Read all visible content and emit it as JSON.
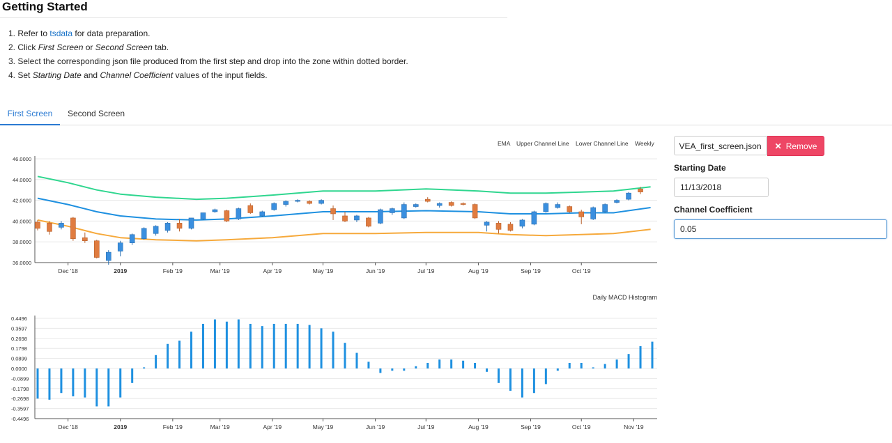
{
  "page": {
    "title": "Getting Started",
    "steps": {
      "s1_num": "1. ",
      "s1_pre": "Refer to ",
      "s1_link": "tsdata",
      "s1_post": " for data preparation.",
      "s2_num": "2. ",
      "s2_pre": "Click ",
      "s2_em1": "First Screen",
      "s2_mid": " or ",
      "s2_em2": "Second Screen",
      "s2_post": " tab.",
      "s3": "3. Select the corresponding json file produced from the first step and drop into the zone within dotted border.",
      "s4_num": "4. ",
      "s4_pre": "Set ",
      "s4_em1": "Starting Date",
      "s4_mid": " and ",
      "s4_em2": "Channel Coefficient",
      "s4_post": " values of the input fields."
    }
  },
  "tabs": {
    "first": "First Screen",
    "second": "Second Screen",
    "active": "first"
  },
  "form": {
    "file_name": "VEA_first_screen.json",
    "remove_label": "Remove",
    "remove_icon": "close-icon",
    "starting_date_label": "Starting Date",
    "starting_date_value": "11/13/2018",
    "channel_coef_label": "Channel Coefficient",
    "channel_coef_value": "0.05"
  },
  "colors": {
    "ema": "#1e90e0",
    "upper": "#2fd68f",
    "lower": "#f6a93b",
    "up_candle": "#3a8fdf",
    "down_candle": "#e07c40",
    "macd": "#1e90e0",
    "remove_button": "#ee4665",
    "active_tab": "#2a7ad2"
  },
  "chart_data": [
    {
      "type": "candlestick",
      "legend": [
        "EMA",
        "Upper Channel Line",
        "Lower Channel Line",
        "Weekly"
      ],
      "legend_position": "top-right",
      "ylim": [
        36.0,
        46.0
      ],
      "yticks": [
        "46.0000",
        "44.0000",
        "42.0000",
        "40.0000",
        "38.0000",
        "36.0000"
      ],
      "xticks": [
        {
          "label": "Dec '18",
          "date": "2018-12-01"
        },
        {
          "label": "2019",
          "date": "2019-01-01",
          "bold": true
        },
        {
          "label": "Feb '19",
          "date": "2019-02-01"
        },
        {
          "label": "Mar '19",
          "date": "2019-03-01"
        },
        {
          "label": "Apr '19",
          "date": "2019-04-01"
        },
        {
          "label": "May '19",
          "date": "2019-05-01"
        },
        {
          "label": "Jun '19",
          "date": "2019-06-01"
        },
        {
          "label": "Jul '19",
          "date": "2019-07-01"
        },
        {
          "label": "Aug '19",
          "date": "2019-08-01"
        },
        {
          "label": "Sep '19",
          "date": "2019-09-01"
        },
        {
          "label": "Oct '19",
          "date": "2019-10-01"
        }
      ],
      "candles": [
        {
          "date": "2018-11-13",
          "o": 39.9,
          "h": 40.1,
          "l": 39.1,
          "c": 39.3
        },
        {
          "date": "2018-11-20",
          "o": 39.8,
          "h": 40.0,
          "l": 38.7,
          "c": 39.0
        },
        {
          "date": "2018-11-27",
          "o": 39.4,
          "h": 40.0,
          "l": 39.2,
          "c": 39.8
        },
        {
          "date": "2018-12-04",
          "o": 40.3,
          "h": 40.4,
          "l": 38.1,
          "c": 38.3
        },
        {
          "date": "2018-12-11",
          "o": 38.4,
          "h": 38.9,
          "l": 37.9,
          "c": 38.1
        },
        {
          "date": "2018-12-18",
          "o": 38.1,
          "h": 38.2,
          "l": 36.4,
          "c": 36.5
        },
        {
          "date": "2018-12-25",
          "o": 36.2,
          "h": 37.2,
          "l": 35.8,
          "c": 37.0
        },
        {
          "date": "2019-01-01",
          "o": 37.1,
          "h": 38.1,
          "l": 36.6,
          "c": 37.9
        },
        {
          "date": "2019-01-08",
          "o": 37.9,
          "h": 38.8,
          "l": 37.7,
          "c": 38.7
        },
        {
          "date": "2019-01-15",
          "o": 38.3,
          "h": 39.4,
          "l": 38.2,
          "c": 39.3
        },
        {
          "date": "2019-01-22",
          "o": 38.8,
          "h": 39.6,
          "l": 38.6,
          "c": 39.5
        },
        {
          "date": "2019-01-29",
          "o": 39.1,
          "h": 39.9,
          "l": 38.9,
          "c": 39.8
        },
        {
          "date": "2019-02-05",
          "o": 39.8,
          "h": 40.2,
          "l": 39.0,
          "c": 39.3
        },
        {
          "date": "2019-02-12",
          "o": 39.3,
          "h": 40.3,
          "l": 39.2,
          "c": 40.3
        },
        {
          "date": "2019-02-19",
          "o": 40.2,
          "h": 40.8,
          "l": 40.1,
          "c": 40.8
        },
        {
          "date": "2019-02-26",
          "o": 40.9,
          "h": 41.2,
          "l": 40.8,
          "c": 41.1
        },
        {
          "date": "2019-03-05",
          "o": 41.0,
          "h": 41.1,
          "l": 39.9,
          "c": 40.0
        },
        {
          "date": "2019-03-12",
          "o": 40.2,
          "h": 41.3,
          "l": 40.1,
          "c": 41.2
        },
        {
          "date": "2019-03-19",
          "o": 41.5,
          "h": 41.7,
          "l": 40.7,
          "c": 40.8
        },
        {
          "date": "2019-03-26",
          "o": 40.5,
          "h": 41.0,
          "l": 40.4,
          "c": 40.9
        },
        {
          "date": "2019-04-02",
          "o": 41.1,
          "h": 41.8,
          "l": 41.0,
          "c": 41.7
        },
        {
          "date": "2019-04-09",
          "o": 41.6,
          "h": 42.0,
          "l": 41.4,
          "c": 41.9
        },
        {
          "date": "2019-04-16",
          "o": 41.9,
          "h": 42.1,
          "l": 41.8,
          "c": 42.0
        },
        {
          "date": "2019-04-23",
          "o": 41.9,
          "h": 42.0,
          "l": 41.6,
          "c": 41.7
        },
        {
          "date": "2019-04-30",
          "o": 41.7,
          "h": 42.1,
          "l": 41.6,
          "c": 42.0
        },
        {
          "date": "2019-05-07",
          "o": 41.2,
          "h": 41.5,
          "l": 40.1,
          "c": 40.7
        },
        {
          "date": "2019-05-14",
          "o": 40.5,
          "h": 40.9,
          "l": 39.9,
          "c": 40.0
        },
        {
          "date": "2019-05-21",
          "o": 40.1,
          "h": 40.6,
          "l": 39.9,
          "c": 40.5
        },
        {
          "date": "2019-05-28",
          "o": 40.3,
          "h": 40.4,
          "l": 39.4,
          "c": 39.5
        },
        {
          "date": "2019-06-04",
          "o": 39.8,
          "h": 41.2,
          "l": 39.7,
          "c": 41.1
        },
        {
          "date": "2019-06-11",
          "o": 40.8,
          "h": 41.3,
          "l": 40.6,
          "c": 41.2
        },
        {
          "date": "2019-06-18",
          "o": 40.3,
          "h": 41.8,
          "l": 40.2,
          "c": 41.6
        },
        {
          "date": "2019-06-25",
          "o": 41.4,
          "h": 41.7,
          "l": 41.3,
          "c": 41.6
        },
        {
          "date": "2019-07-02",
          "o": 42.1,
          "h": 42.3,
          "l": 41.8,
          "c": 41.9
        },
        {
          "date": "2019-07-09",
          "o": 41.5,
          "h": 41.8,
          "l": 41.3,
          "c": 41.7
        },
        {
          "date": "2019-07-16",
          "o": 41.8,
          "h": 41.9,
          "l": 41.4,
          "c": 41.5
        },
        {
          "date": "2019-07-23",
          "o": 41.7,
          "h": 41.8,
          "l": 41.5,
          "c": 41.6
        },
        {
          "date": "2019-07-30",
          "o": 41.6,
          "h": 41.7,
          "l": 40.2,
          "c": 40.3
        },
        {
          "date": "2019-08-06",
          "o": 39.6,
          "h": 40.0,
          "l": 39.0,
          "c": 39.9
        },
        {
          "date": "2019-08-13",
          "o": 39.8,
          "h": 40.0,
          "l": 38.8,
          "c": 39.2
        },
        {
          "date": "2019-08-20",
          "o": 39.7,
          "h": 39.9,
          "l": 39.0,
          "c": 39.1
        },
        {
          "date": "2019-08-27",
          "o": 39.5,
          "h": 40.2,
          "l": 39.3,
          "c": 40.1
        },
        {
          "date": "2019-09-03",
          "o": 39.7,
          "h": 41.0,
          "l": 39.6,
          "c": 40.9
        },
        {
          "date": "2019-09-10",
          "o": 40.9,
          "h": 41.8,
          "l": 40.8,
          "c": 41.7
        },
        {
          "date": "2019-09-17",
          "o": 41.3,
          "h": 41.8,
          "l": 41.2,
          "c": 41.6
        },
        {
          "date": "2019-09-24",
          "o": 41.4,
          "h": 41.5,
          "l": 40.8,
          "c": 40.9
        },
        {
          "date": "2019-10-01",
          "o": 40.9,
          "h": 41.1,
          "l": 39.7,
          "c": 40.4
        },
        {
          "date": "2019-10-08",
          "o": 40.2,
          "h": 41.4,
          "l": 40.1,
          "c": 41.3
        },
        {
          "date": "2019-10-15",
          "o": 40.9,
          "h": 41.7,
          "l": 40.8,
          "c": 41.6
        },
        {
          "date": "2019-10-22",
          "o": 41.8,
          "h": 42.1,
          "l": 41.7,
          "c": 42.0
        },
        {
          "date": "2019-10-29",
          "o": 42.1,
          "h": 42.8,
          "l": 42.0,
          "c": 42.7
        },
        {
          "date": "2019-11-05",
          "o": 43.1,
          "h": 43.3,
          "l": 42.6,
          "c": 42.8
        }
      ],
      "lines": {
        "ema": [
          {
            "date": "2018-11-13",
            "v": 42.2
          },
          {
            "date": "2018-12-01",
            "v": 41.6
          },
          {
            "date": "2018-12-18",
            "v": 40.9
          },
          {
            "date": "2019-01-01",
            "v": 40.5
          },
          {
            "date": "2019-01-22",
            "v": 40.2
          },
          {
            "date": "2019-02-15",
            "v": 40.1
          },
          {
            "date": "2019-03-05",
            "v": 40.2
          },
          {
            "date": "2019-04-01",
            "v": 40.5
          },
          {
            "date": "2019-05-01",
            "v": 40.9
          },
          {
            "date": "2019-06-01",
            "v": 40.9
          },
          {
            "date": "2019-07-01",
            "v": 41.0
          },
          {
            "date": "2019-08-01",
            "v": 40.9
          },
          {
            "date": "2019-08-20",
            "v": 40.7
          },
          {
            "date": "2019-09-10",
            "v": 40.7
          },
          {
            "date": "2019-10-01",
            "v": 40.8
          },
          {
            "date": "2019-10-20",
            "v": 40.8
          },
          {
            "date": "2019-11-11",
            "v": 41.3
          }
        ],
        "upper": [
          {
            "date": "2018-11-13",
            "v": 44.3
          },
          {
            "date": "2018-12-01",
            "v": 43.7
          },
          {
            "date": "2018-12-18",
            "v": 43.0
          },
          {
            "date": "2019-01-01",
            "v": 42.6
          },
          {
            "date": "2019-01-22",
            "v": 42.3
          },
          {
            "date": "2019-02-15",
            "v": 42.1
          },
          {
            "date": "2019-03-05",
            "v": 42.2
          },
          {
            "date": "2019-04-01",
            "v": 42.5
          },
          {
            "date": "2019-05-01",
            "v": 42.9
          },
          {
            "date": "2019-06-01",
            "v": 42.9
          },
          {
            "date": "2019-07-01",
            "v": 43.1
          },
          {
            "date": "2019-08-01",
            "v": 42.9
          },
          {
            "date": "2019-08-20",
            "v": 42.7
          },
          {
            "date": "2019-09-10",
            "v": 42.7
          },
          {
            "date": "2019-10-01",
            "v": 42.8
          },
          {
            "date": "2019-10-20",
            "v": 42.9
          },
          {
            "date": "2019-11-11",
            "v": 43.3
          }
        ],
        "lower": [
          {
            "date": "2018-11-13",
            "v": 40.1
          },
          {
            "date": "2018-12-01",
            "v": 39.5
          },
          {
            "date": "2018-12-18",
            "v": 38.8
          },
          {
            "date": "2019-01-01",
            "v": 38.4
          },
          {
            "date": "2019-01-22",
            "v": 38.2
          },
          {
            "date": "2019-02-15",
            "v": 38.1
          },
          {
            "date": "2019-03-05",
            "v": 38.2
          },
          {
            "date": "2019-04-01",
            "v": 38.4
          },
          {
            "date": "2019-05-01",
            "v": 38.8
          },
          {
            "date": "2019-06-01",
            "v": 38.8
          },
          {
            "date": "2019-07-01",
            "v": 38.9
          },
          {
            "date": "2019-08-01",
            "v": 38.9
          },
          {
            "date": "2019-08-20",
            "v": 38.7
          },
          {
            "date": "2019-09-10",
            "v": 38.6
          },
          {
            "date": "2019-10-01",
            "v": 38.7
          },
          {
            "date": "2019-10-20",
            "v": 38.8
          },
          {
            "date": "2019-11-11",
            "v": 39.2
          }
        ]
      }
    },
    {
      "type": "bar",
      "title": "Daily MACD Histogram",
      "ylim": [
        -0.4496,
        0.4496
      ],
      "yticks": [
        "0.4496",
        "0.3597",
        "0.2698",
        "0.1798",
        "0.0899",
        "0.0000",
        "-0.0899",
        "-0.1798",
        "-0.2698",
        "-0.3597",
        "-0.4496"
      ],
      "xticks": [
        {
          "label": "Dec '18",
          "date": "2018-12-01"
        },
        {
          "label": "2019",
          "date": "2019-01-01",
          "bold": true
        },
        {
          "label": "Feb '19",
          "date": "2019-02-01"
        },
        {
          "label": "Mar '19",
          "date": "2019-03-01"
        },
        {
          "label": "Apr '19",
          "date": "2019-04-01"
        },
        {
          "label": "May '19",
          "date": "2019-05-01"
        },
        {
          "label": "Jun '19",
          "date": "2019-06-01"
        },
        {
          "label": "Jul '19",
          "date": "2019-07-01"
        },
        {
          "label": "Aug '19",
          "date": "2019-08-01"
        },
        {
          "label": "Sep '19",
          "date": "2019-09-01"
        },
        {
          "label": "Oct '19",
          "date": "2019-10-01"
        },
        {
          "label": "Nov '19",
          "date": "2019-11-01"
        }
      ],
      "bars": [
        {
          "date": "2018-11-13",
          "v": -0.27
        },
        {
          "date": "2018-11-20",
          "v": -0.28
        },
        {
          "date": "2018-11-27",
          "v": -0.22
        },
        {
          "date": "2018-12-04",
          "v": -0.25
        },
        {
          "date": "2018-12-11",
          "v": -0.26
        },
        {
          "date": "2018-12-18",
          "v": -0.34
        },
        {
          "date": "2018-12-25",
          "v": -0.34
        },
        {
          "date": "2019-01-01",
          "v": -0.26
        },
        {
          "date": "2019-01-08",
          "v": -0.13
        },
        {
          "date": "2019-01-15",
          "v": 0.01
        },
        {
          "date": "2019-01-22",
          "v": 0.12
        },
        {
          "date": "2019-01-29",
          "v": 0.22
        },
        {
          "date": "2019-02-05",
          "v": 0.25
        },
        {
          "date": "2019-02-12",
          "v": 0.33
        },
        {
          "date": "2019-02-19",
          "v": 0.4
        },
        {
          "date": "2019-02-26",
          "v": 0.44
        },
        {
          "date": "2019-03-05",
          "v": 0.42
        },
        {
          "date": "2019-03-12",
          "v": 0.44
        },
        {
          "date": "2019-03-19",
          "v": 0.4
        },
        {
          "date": "2019-03-26",
          "v": 0.38
        },
        {
          "date": "2019-04-02",
          "v": 0.4
        },
        {
          "date": "2019-04-09",
          "v": 0.4
        },
        {
          "date": "2019-04-16",
          "v": 0.4
        },
        {
          "date": "2019-04-23",
          "v": 0.39
        },
        {
          "date": "2019-04-30",
          "v": 0.36
        },
        {
          "date": "2019-05-07",
          "v": 0.33
        },
        {
          "date": "2019-05-14",
          "v": 0.23
        },
        {
          "date": "2019-05-21",
          "v": 0.14
        },
        {
          "date": "2019-05-28",
          "v": 0.06
        },
        {
          "date": "2019-06-04",
          "v": -0.04
        },
        {
          "date": "2019-06-11",
          "v": -0.02
        },
        {
          "date": "2019-06-18",
          "v": -0.02
        },
        {
          "date": "2019-06-25",
          "v": 0.02
        },
        {
          "date": "2019-07-02",
          "v": 0.05
        },
        {
          "date": "2019-07-09",
          "v": 0.08
        },
        {
          "date": "2019-07-16",
          "v": 0.08
        },
        {
          "date": "2019-07-23",
          "v": 0.07
        },
        {
          "date": "2019-07-30",
          "v": 0.05
        },
        {
          "date": "2019-08-06",
          "v": -0.03
        },
        {
          "date": "2019-08-13",
          "v": -0.13
        },
        {
          "date": "2019-08-20",
          "v": -0.2
        },
        {
          "date": "2019-08-27",
          "v": -0.26
        },
        {
          "date": "2019-09-03",
          "v": -0.22
        },
        {
          "date": "2019-09-10",
          "v": -0.14
        },
        {
          "date": "2019-09-17",
          "v": -0.02
        },
        {
          "date": "2019-09-24",
          "v": 0.05
        },
        {
          "date": "2019-10-01",
          "v": 0.05
        },
        {
          "date": "2019-10-08",
          "v": 0.01
        },
        {
          "date": "2019-10-15",
          "v": 0.04
        },
        {
          "date": "2019-10-22",
          "v": 0.08
        },
        {
          "date": "2019-10-29",
          "v": 0.13
        },
        {
          "date": "2019-11-05",
          "v": 0.2
        },
        {
          "date": "2019-11-12",
          "v": 0.24
        }
      ]
    }
  ]
}
